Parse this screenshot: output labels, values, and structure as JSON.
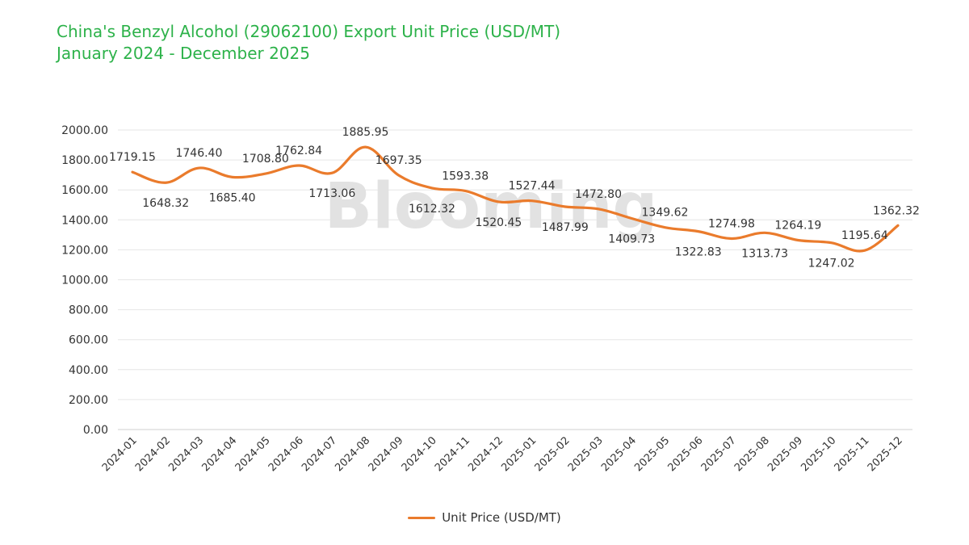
{
  "title_line1": "China's Benzyl Alcohol (29062100) Export Unit Price (USD/MT)",
  "title_line2": "January 2024 - December 2025",
  "watermark": "Blooming",
  "colors": {
    "title": "#2db24a",
    "line": "#ea7b2c",
    "grid": "#e6e6e6"
  },
  "chart_data": {
    "type": "line",
    "categories": [
      "2024-01",
      "2024-02",
      "2024-03",
      "2024-04",
      "2024-05",
      "2024-06",
      "2024-07",
      "2024-08",
      "2024-09",
      "2024-10",
      "2024-11",
      "2024-12",
      "2025-01",
      "2025-02",
      "2025-03",
      "2025-04",
      "2025-05",
      "2025-06",
      "2025-07",
      "2025-08",
      "2025-09",
      "2025-10",
      "2025-11",
      "2025-12"
    ],
    "series": [
      {
        "name": "Unit Price (USD/MT)",
        "values": [
          1719.15,
          1648.32,
          1746.4,
          1685.4,
          1708.8,
          1762.84,
          1713.06,
          1885.95,
          1697.35,
          1612.32,
          1593.38,
          1520.45,
          1527.44,
          1487.99,
          1472.8,
          1409.73,
          1349.62,
          1322.83,
          1274.98,
          1313.73,
          1264.19,
          1247.02,
          1195.64,
          1362.32
        ],
        "labels": [
          "1719.15",
          "1648.32",
          "1746.40",
          "1685.40",
          "1708.80",
          "1762.84",
          "1713.06",
          "1885.95",
          "1697.35",
          "1612.32",
          "1593.38",
          "1520.45",
          "1527.44",
          "1487.99",
          "1472.80",
          "1409.73",
          "1349.62",
          "1322.83",
          "1274.98",
          "1313.73",
          "1264.19",
          "1247.02",
          "1195.64",
          "1362.32"
        ]
      }
    ],
    "yticks": [
      "0.00",
      "200.00",
      "400.00",
      "600.00",
      "800.00",
      "1000.00",
      "1200.00",
      "1400.00",
      "1600.00",
      "1800.00",
      "2000.00"
    ],
    "ylim": [
      0,
      2000
    ],
    "grid": true,
    "legend": "bottom-center"
  }
}
